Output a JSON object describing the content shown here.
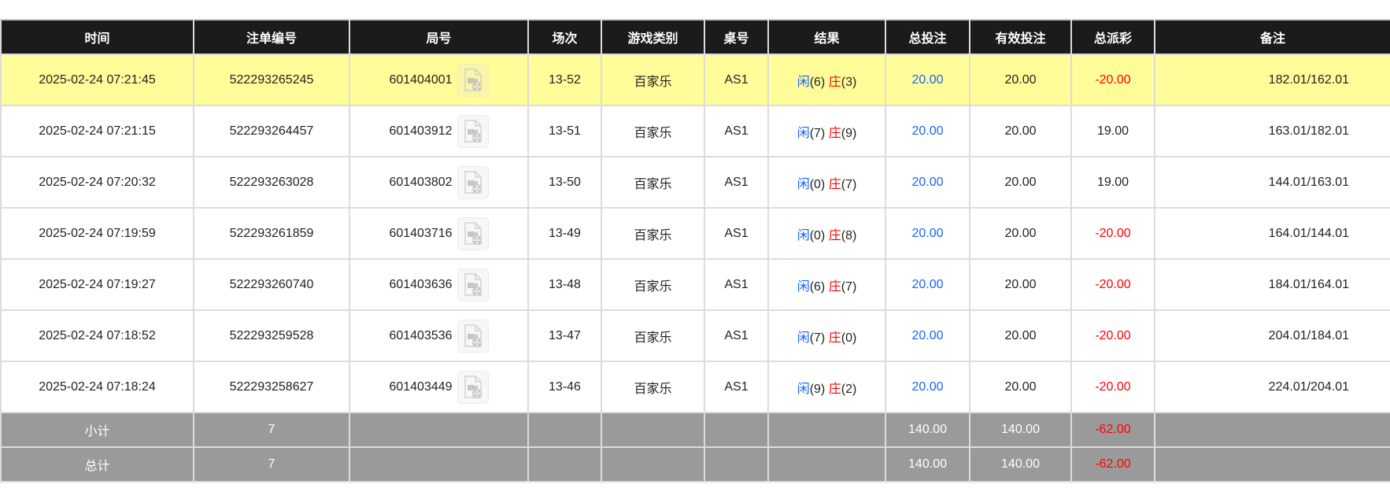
{
  "headers": [
    "时间",
    "注单编号",
    "局号",
    "场次",
    "游戏类别",
    "桌号",
    "结果",
    "总投注",
    "有效投注",
    "总派彩",
    "备注"
  ],
  "icon": "video-replay-icon",
  "colors": {
    "header_bg": "#1b1b1b",
    "highlight_row": "#fffd99",
    "summary_bg": "#9a9a9a",
    "player": "#1565ff",
    "banker": "#ff0000",
    "negative": "#ff0000"
  },
  "rows": [
    {
      "time": "2025-02-24 07:21:45",
      "bet_id": "522293265245",
      "round": "601404001",
      "shoe": "13-52",
      "game": "百家乐",
      "table": "AS1",
      "player_label": "闲",
      "player": "(6)",
      "banker_label": "庄",
      "banker": "(3)",
      "total_bet": "20.00",
      "valid_bet": "20.00",
      "payout": "-20.00",
      "note": "182.01/162.01",
      "highlighted": true
    },
    {
      "time": "2025-02-24 07:21:15",
      "bet_id": "522293264457",
      "round": "601403912",
      "shoe": "13-51",
      "game": "百家乐",
      "table": "AS1",
      "player_label": "闲",
      "player": "(7)",
      "banker_label": "庄",
      "banker": "(9)",
      "total_bet": "20.00",
      "valid_bet": "20.00",
      "payout": "19.00",
      "note": "163.01/182.01"
    },
    {
      "time": "2025-02-24 07:20:32",
      "bet_id": "522293263028",
      "round": "601403802",
      "shoe": "13-50",
      "game": "百家乐",
      "table": "AS1",
      "player_label": "闲",
      "player": "(0)",
      "banker_label": "庄",
      "banker": "(7)",
      "total_bet": "20.00",
      "valid_bet": "20.00",
      "payout": "19.00",
      "note": "144.01/163.01"
    },
    {
      "time": "2025-02-24 07:19:59",
      "bet_id": "522293261859",
      "round": "601403716",
      "shoe": "13-49",
      "game": "百家乐",
      "table": "AS1",
      "player_label": "闲",
      "player": "(0)",
      "banker_label": "庄",
      "banker": "(8)",
      "total_bet": "20.00",
      "valid_bet": "20.00",
      "payout": "-20.00",
      "note": "164.01/144.01"
    },
    {
      "time": "2025-02-24 07:19:27",
      "bet_id": "522293260740",
      "round": "601403636",
      "shoe": "13-48",
      "game": "百家乐",
      "table": "AS1",
      "player_label": "闲",
      "player": "(6)",
      "banker_label": "庄",
      "banker": "(7)",
      "total_bet": "20.00",
      "valid_bet": "20.00",
      "payout": "-20.00",
      "note": "184.01/164.01"
    },
    {
      "time": "2025-02-24 07:18:52",
      "bet_id": "522293259528",
      "round": "601403536",
      "shoe": "13-47",
      "game": "百家乐",
      "table": "AS1",
      "player_label": "闲",
      "player": "(7)",
      "banker_label": "庄",
      "banker": "(0)",
      "total_bet": "20.00",
      "valid_bet": "20.00",
      "payout": "-20.00",
      "note": "204.01/184.01"
    },
    {
      "time": "2025-02-24 07:18:24",
      "bet_id": "522293258627",
      "round": "601403449",
      "shoe": "13-46",
      "game": "百家乐",
      "table": "AS1",
      "player_label": "闲",
      "player": "(9)",
      "banker_label": "庄",
      "banker": "(2)",
      "total_bet": "20.00",
      "valid_bet": "20.00",
      "payout": "-20.00",
      "note": "224.01/204.01"
    }
  ],
  "summary": [
    {
      "label": "小计",
      "count": "7",
      "total_bet": "140.00",
      "valid_bet": "140.00",
      "payout": "-62.00"
    },
    {
      "label": "总计",
      "count": "7",
      "total_bet": "140.00",
      "valid_bet": "140.00",
      "payout": "-62.00"
    }
  ]
}
